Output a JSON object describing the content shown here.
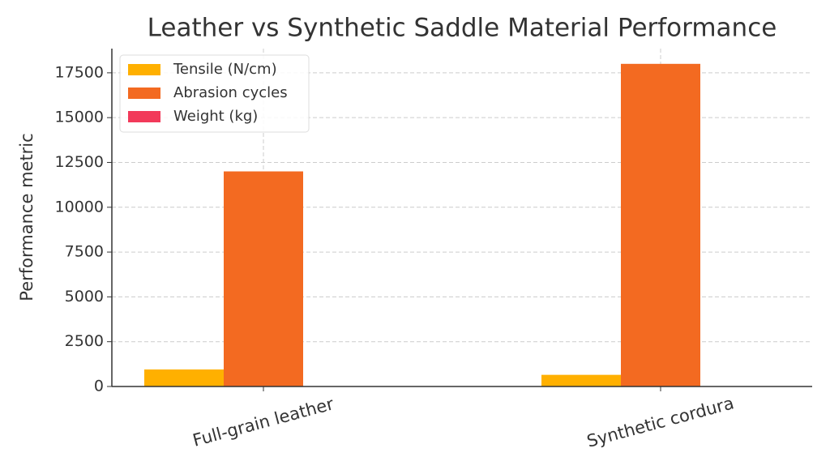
{
  "chart_data": {
    "type": "bar",
    "title": "Leather vs Synthetic Saddle Material Performance",
    "y_label": "Performance metric",
    "categories": [
      "Full-grain leather",
      "Synthetic cordura"
    ],
    "series": [
      {
        "name": "Tensile (N/cm)",
        "color": "#ffb000",
        "values": [
          950,
          650
        ]
      },
      {
        "name": "Abrasion cycles",
        "color": "#f36a21",
        "values": [
          12000,
          18000
        ]
      },
      {
        "name": "Weight (kg)",
        "color": "#f23a5a",
        "values": [
          2.5,
          1.8
        ]
      }
    ],
    "ylim": [
      0,
      18850
    ],
    "yticks": [
      0,
      2500,
      5000,
      7500,
      10000,
      12500,
      15000,
      17500
    ],
    "grid": true,
    "legend": "upper-left"
  }
}
